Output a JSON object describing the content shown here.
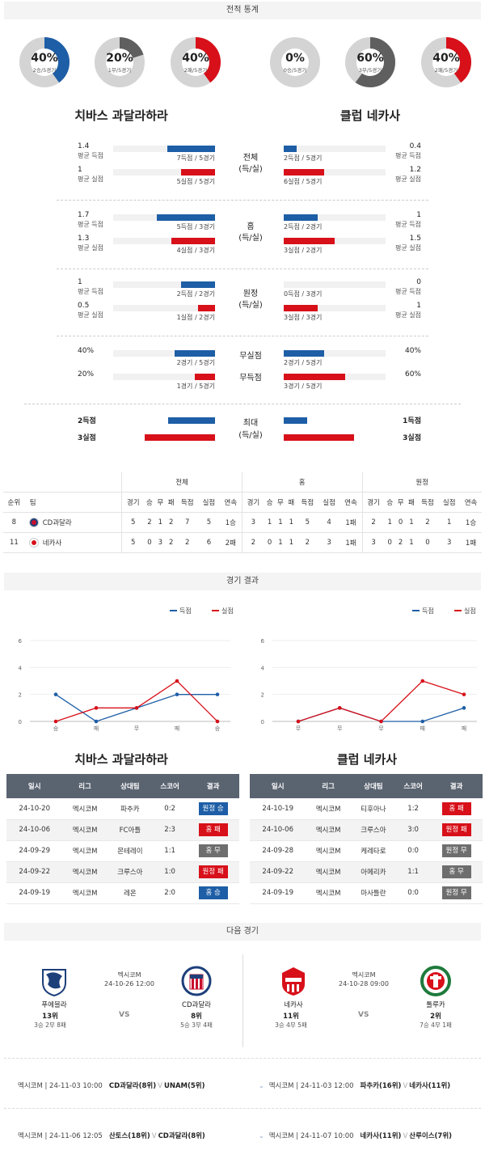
{
  "sections": {
    "stats": "전적 통계",
    "results": "경기 결과",
    "next": "다음 경기"
  },
  "donuts": [
    {
      "pct": "40%",
      "sub": "2승/5경기",
      "value": 0.4,
      "color": "#1d5ea6"
    },
    {
      "pct": "20%",
      "sub": "1무/5경기",
      "value": 0.2,
      "color": "#5f5f5f"
    },
    {
      "pct": "40%",
      "sub": "2패/5경기",
      "value": 0.4,
      "color": "#d7101a"
    },
    {
      "pct": "0%",
      "sub": "0승/5경기",
      "value": 0.0,
      "color": "#1d5ea6"
    },
    {
      "pct": "60%",
      "sub": "3무/5경기",
      "value": 0.6,
      "color": "#5f5f5f"
    },
    {
      "pct": "40%",
      "sub": "2패/5경기",
      "value": 0.4,
      "color": "#d7101a"
    }
  ],
  "teams": {
    "home": "치바스 과달라하라",
    "away": "클럽 네카사"
  },
  "stat_groups": [
    {
      "label1": "전체",
      "label2": "(득/실)",
      "rows": [
        {
          "lv": "1.4",
          "llbl": "평균 득점",
          "lbar": "7득점 / 5경기",
          "lfill": 0.47,
          "rv": "0.4",
          "rlbl": "평균 득점",
          "rbar": "2득점 / 5경기",
          "rfill": 0.13,
          "color": "blue"
        },
        {
          "lv": "1",
          "llbl": "평균 실점",
          "lbar": "5실점 / 5경기",
          "lfill": 0.33,
          "rv": "1.2",
          "rlbl": "평균 실점",
          "rbar": "6실점 / 5경기",
          "rfill": 0.4,
          "color": "red"
        }
      ]
    },
    {
      "label1": "홈",
      "label2": "(득/실)",
      "rows": [
        {
          "lv": "1.7",
          "llbl": "평균 득점",
          "lbar": "5득점 / 3경기",
          "lfill": 0.57,
          "rv": "1",
          "rlbl": "평균 득점",
          "rbar": "2득점 / 2경기",
          "rfill": 0.33,
          "color": "blue"
        },
        {
          "lv": "1.3",
          "llbl": "평균 실점",
          "lbar": "4실점 / 3경기",
          "lfill": 0.43,
          "rv": "1.5",
          "rlbl": "평균 실점",
          "rbar": "3실점 / 2경기",
          "rfill": 0.5,
          "color": "red"
        }
      ]
    },
    {
      "label1": "원정",
      "label2": "(득/실)",
      "rows": [
        {
          "lv": "1",
          "llbl": "평균 득점",
          "lbar": "2득점 / 2경기",
          "lfill": 0.33,
          "rv": "0",
          "rlbl": "평균 득점",
          "rbar": "0득점 / 3경기",
          "rfill": 0.0,
          "color": "blue"
        },
        {
          "lv": "0.5",
          "llbl": "평균 실점",
          "lbar": "1실점 / 2경기",
          "lfill": 0.17,
          "rv": "1",
          "rlbl": "평균 실점",
          "rbar": "3실점 / 3경기",
          "rfill": 0.33,
          "color": "red"
        }
      ]
    }
  ],
  "pct_group": {
    "label1": "무실점",
    "label2": "무득점",
    "rows": [
      {
        "lv": "40%",
        "lbar": "2경기 / 5경기",
        "lfill": 0.4,
        "rv": "40%",
        "rbar": "2경기 / 5경기",
        "rfill": 0.4,
        "color": "blue"
      },
      {
        "lv": "20%",
        "lbar": "1경기 / 5경기",
        "lfill": 0.2,
        "rv": "60%",
        "rbar": "3경기 / 5경기",
        "rfill": 0.6,
        "color": "red"
      }
    ]
  },
  "max_group": {
    "label1": "최대",
    "label2": "(득/실)",
    "rows": [
      {
        "lv": "2득점",
        "lfill": 0.5,
        "rv": "1득점",
        "rfill": 0.25,
        "color": "blue"
      },
      {
        "lv": "3실점",
        "lfill": 0.75,
        "rv": "3실점",
        "rfill": 0.75,
        "color": "red"
      }
    ]
  },
  "standings": {
    "groups": [
      "전체",
      "홈",
      "원정"
    ],
    "cols": [
      "순위",
      "팀",
      "경기",
      "승",
      "무",
      "패",
      "득점",
      "실점",
      "연속",
      "경기",
      "승",
      "무",
      "패",
      "득점",
      "실점",
      "연속",
      "경기",
      "승",
      "무",
      "패",
      "득점",
      "실점",
      "연속"
    ],
    "rows": [
      [
        "8",
        "CD과달라",
        "5",
        "2",
        "1",
        "2",
        "7",
        "5",
        "1승",
        "3",
        "1",
        "1",
        "1",
        "5",
        "4",
        "1패",
        "2",
        "1",
        "0",
        "1",
        "2",
        "1",
        "1승"
      ],
      [
        "11",
        "네카사",
        "5",
        "0",
        "3",
        "2",
        "2",
        "6",
        "2패",
        "2",
        "0",
        "1",
        "1",
        "2",
        "3",
        "1패",
        "3",
        "0",
        "2",
        "1",
        "0",
        "3",
        "1패"
      ]
    ]
  },
  "chart_data": [
    {
      "type": "line",
      "title": "",
      "x": [
        "승",
        "패",
        "무",
        "패",
        "승"
      ],
      "ylim": [
        0,
        6
      ],
      "yticks": [
        "0",
        "2",
        "4",
        "6"
      ],
      "legend": "top-right",
      "series": [
        {
          "name": "득점",
          "color": "#1d5ea6",
          "values": [
            2,
            0,
            1,
            2,
            2
          ]
        },
        {
          "name": "실점",
          "color": "#d7101a",
          "values": [
            0,
            1,
            1,
            3,
            0
          ]
        }
      ]
    },
    {
      "type": "line",
      "title": "",
      "x": [
        "무",
        "무",
        "무",
        "패",
        "패"
      ],
      "ylim": [
        0,
        6
      ],
      "yticks": [
        "0",
        "2",
        "4",
        "6"
      ],
      "legend": "top-right",
      "series": [
        {
          "name": "득점",
          "color": "#1d5ea6",
          "values": [
            0,
            1,
            0,
            0,
            1
          ]
        },
        {
          "name": "실점",
          "color": "#d7101a",
          "values": [
            0,
            1,
            0,
            3,
            2
          ]
        }
      ]
    }
  ],
  "results_headers": [
    "일시",
    "리그",
    "상대팀",
    "스코어",
    "결과"
  ],
  "results_home": [
    [
      "24-10-20",
      "멕시코M",
      "파추카",
      "0:2",
      "원정 승",
      "bl"
    ],
    [
      "24-10-06",
      "멕시코M",
      "FC아틀",
      "2:3",
      "홈 패",
      "rd"
    ],
    [
      "24-09-29",
      "멕시코M",
      "몬테레이",
      "1:1",
      "홈 무",
      "gy"
    ],
    [
      "24-09-22",
      "멕시코M",
      "크루스아",
      "1:0",
      "원정 패",
      "rd"
    ],
    [
      "24-09-19",
      "멕시코M",
      "레온",
      "2:0",
      "홈 승",
      "bl"
    ]
  ],
  "results_away": [
    [
      "24-10-19",
      "멕시코M",
      "티후아나",
      "1:2",
      "홈 패",
      "rd"
    ],
    [
      "24-10-06",
      "멕시코M",
      "크루스아",
      "3:0",
      "원정 패",
      "rd"
    ],
    [
      "24-09-28",
      "멕시코M",
      "케레타로",
      "0:0",
      "원정 무",
      "gy"
    ],
    [
      "24-09-22",
      "멕시코M",
      "아메리카",
      "1:1",
      "홈 무",
      "gy"
    ],
    [
      "24-09-19",
      "멕시코M",
      "마사틀란",
      "0:0",
      "원정 무",
      "gy"
    ]
  ],
  "next": {
    "left": {
      "league": "멕시코M",
      "time": "24-10-26 12:00",
      "vs": "VS",
      "home": {
        "name": "푸에블라",
        "rank": "13위",
        "rec": "3승 2무 8패"
      },
      "away": {
        "name": "CD과달라",
        "rank": "8위",
        "rec": "5승 3무 4패"
      }
    },
    "right": {
      "league": "멕시코M",
      "time": "24-10-28 09:00",
      "vs": "VS",
      "home": {
        "name": "네카사",
        "rank": "11위",
        "rec": "3승 4무 5패"
      },
      "away": {
        "name": "톨루카",
        "rank": "2위",
        "rec": "7승 4무 1패"
      }
    }
  },
  "upcoming": [
    {
      "info": "멕시코M | 24-11-03 10:00",
      "teams": "CD과달라(8위)",
      "vsmark": "V",
      "opp": "UNAM(5위)"
    },
    {
      "info": "멕시코M | 24-11-03 12:00",
      "teams": "파추카(16위)",
      "vsmark": "V",
      "opp": "네카사(11위)"
    },
    {
      "info": "멕시코M | 24-11-06 12:05",
      "teams": "산토스(18위)",
      "vsmark": "V",
      "opp": "CD과달라(8위)"
    },
    {
      "info": "멕시코M | 24-11-07 10:00",
      "teams": "네카사(11위)",
      "vsmark": "V",
      "opp": "산루이스(7위)"
    }
  ]
}
